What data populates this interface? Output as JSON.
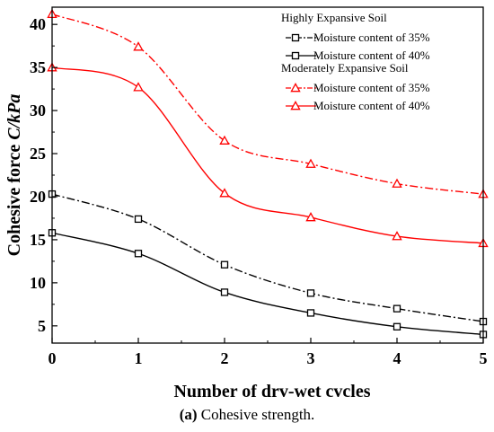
{
  "chart_data": {
    "type": "line",
    "xlabel": "Number of drv-wet cvcles",
    "ylabel": "Cohesive force",
    "ylabel_unit": "C/kPa",
    "x": [
      0,
      1,
      2,
      3,
      4,
      5
    ],
    "xlim": [
      0,
      5
    ],
    "ylim": [
      3,
      42
    ],
    "xticks": [
      0,
      1,
      2,
      3,
      4,
      5
    ],
    "yticks": [
      5,
      10,
      15,
      20,
      25,
      30,
      35,
      40
    ],
    "grid": false,
    "legend_position": "top-right",
    "legend_groups": [
      {
        "title": "Highly Expansive Soil",
        "series": [
          0,
          1
        ]
      },
      {
        "title": "Moderately Expansive Soil",
        "series": [
          2,
          3
        ]
      }
    ],
    "series": [
      {
        "name": "Moisture content of 35%",
        "group": "Highly Expansive Soil",
        "color": "#000000",
        "line_style": "dash-dot",
        "marker": "square",
        "values": [
          20.3,
          17.4,
          12.1,
          8.8,
          7.0,
          5.5
        ]
      },
      {
        "name": "Moisture content of 40%",
        "group": "Highly Expansive Soil",
        "color": "#000000",
        "line_style": "solid",
        "marker": "square",
        "values": [
          15.8,
          13.4,
          8.9,
          6.5,
          4.9,
          4.0
        ]
      },
      {
        "name": "Moisture content of 35%",
        "group": "Moderately Expansive Soil",
        "color": "#ff0000",
        "line_style": "dash-dot",
        "marker": "triangle",
        "values": [
          41.2,
          37.4,
          26.5,
          23.8,
          21.5,
          20.3
        ]
      },
      {
        "name": "Moisture content of 40%",
        "group": "Moderately Expansive Soil",
        "color": "#ff0000",
        "line_style": "solid",
        "marker": "triangle",
        "values": [
          35.0,
          32.7,
          20.4,
          17.6,
          15.4,
          14.6
        ]
      }
    ]
  },
  "caption": {
    "label": "(a)",
    "text": " Cohesive strength."
  }
}
